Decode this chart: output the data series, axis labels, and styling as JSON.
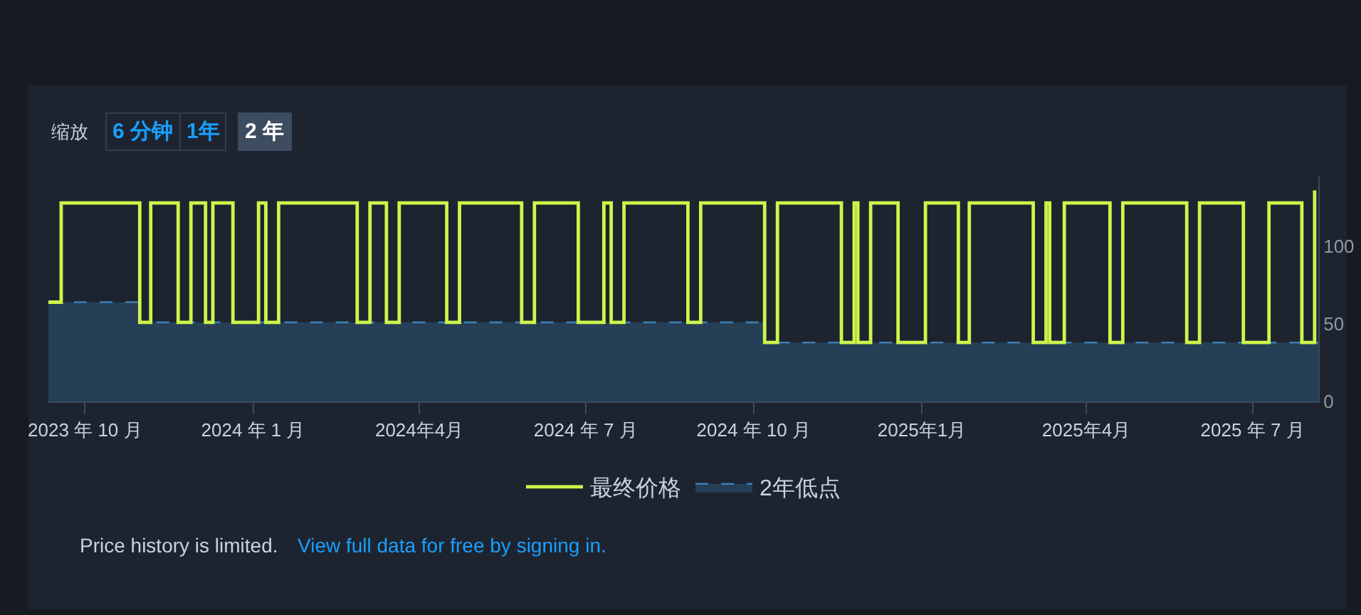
{
  "chart_data": {
    "type": "step",
    "xlim": [
      "2023-09-11",
      "2025-08-06"
    ],
    "xticks": [
      {
        "value": "2023-10-01",
        "label": "2023 年 10 月"
      },
      {
        "value": "2024-01-01",
        "label": "2024 年 1 月"
      },
      {
        "value": "2024-04-01",
        "label": "2024年4月"
      },
      {
        "value": "2024-07-01",
        "label": "2024 年 7 月"
      },
      {
        "value": "2024-10-01",
        "label": "2024 年 10 月"
      },
      {
        "value": "2025-01-01",
        "label": "2025年1月"
      },
      {
        "value": "2025-04-01",
        "label": "2025年4月"
      },
      {
        "value": "2025-07-01",
        "label": "2025 年 7 月"
      }
    ],
    "ylim": [
      0,
      145
    ],
    "yticks": [
      0,
      50,
      100
    ],
    "legend": "bottom",
    "series": [
      {
        "name": "最终价格",
        "color": "#cdf54a",
        "x": [
          "2023-09-11",
          "2023-09-18",
          "2023-10-31",
          "2023-11-06",
          "2023-11-21",
          "2023-11-28",
          "2023-12-06",
          "2023-12-10",
          "2023-12-21",
          "2024-01-04",
          "2024-01-08",
          "2024-01-15",
          "2024-02-27",
          "2024-03-05",
          "2024-03-14",
          "2024-03-21",
          "2024-04-16",
          "2024-04-23",
          "2024-05-27",
          "2024-06-03",
          "2024-06-27",
          "2024-07-11",
          "2024-07-15",
          "2024-07-22",
          "2024-08-26",
          "2024-09-02",
          "2024-10-07",
          "2024-10-14",
          "2024-11-18",
          "2024-11-25",
          "2024-11-27",
          "2024-12-04",
          "2024-12-19",
          "2025-01-03",
          "2025-01-21",
          "2025-01-27",
          "2025-03-03",
          "2025-03-10",
          "2025-03-12",
          "2025-03-20",
          "2025-04-14",
          "2025-04-21",
          "2025-05-26",
          "2025-06-02",
          "2025-06-26",
          "2025-07-10",
          "2025-07-28",
          "2025-08-04"
        ],
        "values": [
          64,
          128,
          51,
          128,
          51,
          128,
          51,
          128,
          51,
          128,
          51,
          128,
          51,
          128,
          51,
          128,
          51,
          128,
          51,
          128,
          51,
          128,
          51,
          128,
          51,
          128,
          38,
          128,
          38,
          128,
          38,
          128,
          38,
          128,
          38,
          128,
          38,
          128,
          38,
          128,
          38,
          128,
          38,
          128,
          38,
          128,
          38,
          136
        ]
      },
      {
        "name": "2年低点",
        "type": "area",
        "color": "#3b7fb4",
        "line_style": "dashed",
        "x": [
          "2023-09-11",
          "2023-10-31",
          "2023-10-31",
          "2024-10-07",
          "2024-10-07",
          "2025-08-06"
        ],
        "values": [
          64,
          64,
          51,
          51,
          38,
          38
        ]
      }
    ],
    "annotations": [
      "缩放",
      "6 分钟",
      "1年",
      "2 年",
      "Price history is limited.",
      "View full data for free by signing in."
    ]
  }
}
